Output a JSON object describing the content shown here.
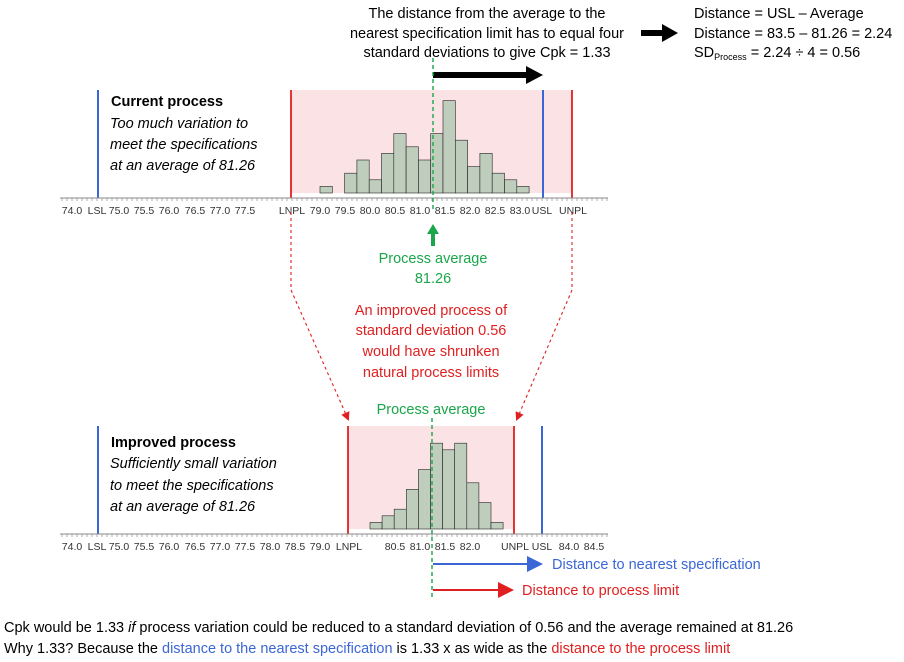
{
  "top_note": {
    "lines": [
      "The distance from the average to the",
      "nearest specification limit has to equal four",
      "standard deviations to give Cpk = 1.33"
    ]
  },
  "calc": {
    "line1": "Distance = USL – Average",
    "line2": "Distance = 83.5 – 81.26 = 2.24",
    "line3_prefix": "SD",
    "line3_sub": "Process",
    "line3_suffix": " = 2.24 ÷ 4 = 0.56"
  },
  "current": {
    "title": "Current process",
    "desc": [
      "Too much variation to",
      "meet the specifications",
      "at an average of 81.26"
    ],
    "histogram": [
      1,
      0,
      3,
      5,
      2,
      6,
      9,
      7,
      5,
      9,
      14,
      8,
      4,
      6,
      3,
      2,
      1
    ],
    "ticks": [
      "74.0",
      "75.0",
      "75.5",
      "76.0",
      "76.5",
      "77.0",
      "77.5",
      "79.0",
      "79.5",
      "80.0",
      "80.5",
      "81.0",
      "81.5",
      "82.0",
      "82.5",
      "83.0"
    ],
    "limits": {
      "lsl": "LSL",
      "lnpl": "LNPL",
      "usl": "USL",
      "unpl": "UNPL"
    }
  },
  "process_average": {
    "label": "Process average",
    "value": "81.26"
  },
  "middle_note": {
    "lines": [
      "An improved process of",
      "standard deviation 0.56",
      "would have shrunken",
      "natural process limits"
    ]
  },
  "improved": {
    "process_average_label": "Process average",
    "title": "Improved process",
    "desc": [
      "Sufficiently small variation",
      "to meet the specifications",
      "at an average of 81.26"
    ],
    "histogram": [
      1,
      2,
      3,
      6,
      9,
      13,
      12,
      13,
      7,
      4,
      1
    ],
    "ticks": [
      "74.0",
      "75.0",
      "75.5",
      "76.0",
      "76.5",
      "77.0",
      "77.5",
      "78.0",
      "78.5",
      "79.0",
      "80.5",
      "81.0",
      "81.5",
      "82.0",
      "84.0",
      "84.5"
    ],
    "limits": {
      "lsl": "LSL",
      "lnpl": "LNPL",
      "usl": "USL",
      "unpl": "UNPL"
    }
  },
  "legend": {
    "spec": "Distance to nearest specification",
    "limit": "Distance to process limit"
  },
  "footer": {
    "line1_a": "Cpk would be 1.33 ",
    "line1_b": "if",
    "line1_c": " process variation could be reduced to a standard deviation of 0.56 and the average remained at 81.26",
    "line2_a": "Why 1.33? Because the ",
    "line2_b": "distance to the nearest specification",
    "line2_c": " is 1.33 x as wide as the ",
    "line2_d": "distance to the process limit"
  },
  "colors": {
    "spec": "#3a66d6",
    "limit": "#e02020",
    "average": "#1aa64a",
    "bar": "#bfcdbd",
    "band": "#fbe2e4"
  }
}
